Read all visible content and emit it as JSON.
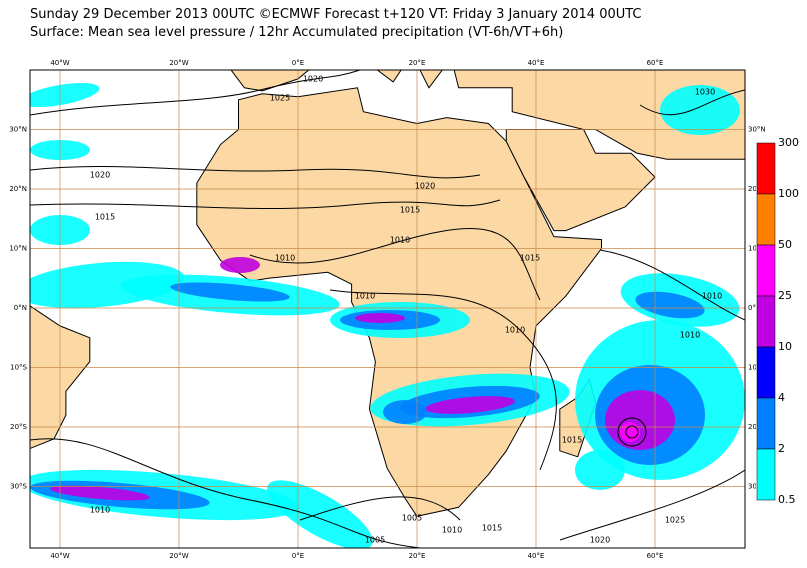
{
  "header": {
    "line1": "Sunday 29 December 2013 00UTC ©ECMWF Forecast t+120 VT: Friday 3 January 2014 00UTC",
    "line2": "Surface: Mean sea level pressure / 12hr Accumulated precipitation (VT-6h/VT+6h)"
  },
  "map": {
    "lon_labels": [
      "40°W",
      "20°W",
      "0°E",
      "20°E",
      "40°E",
      "60°E"
    ],
    "lat_labels": [
      "30°N",
      "20°N",
      "10°N",
      "0°N",
      "10°S",
      "20°S",
      "30°S"
    ],
    "isobar_labels": [
      "1020",
      "1025",
      "1020",
      "1015",
      "1020",
      "1015",
      "1010",
      "1010",
      "1010",
      "1015",
      "1010",
      "1010",
      "1010",
      "1015",
      "1010",
      "1005",
      "1005",
      "1010",
      "1015",
      "1020",
      "1025",
      "1030"
    ]
  },
  "colorbar": {
    "levels": [
      300,
      100,
      50,
      25,
      10,
      4,
      2,
      0.5
    ],
    "colors": [
      "#ff0000",
      "#ff8000",
      "#ff00ff",
      "#c000e0",
      "#0000ff",
      "#0080ff",
      "#00ffff"
    ]
  }
}
